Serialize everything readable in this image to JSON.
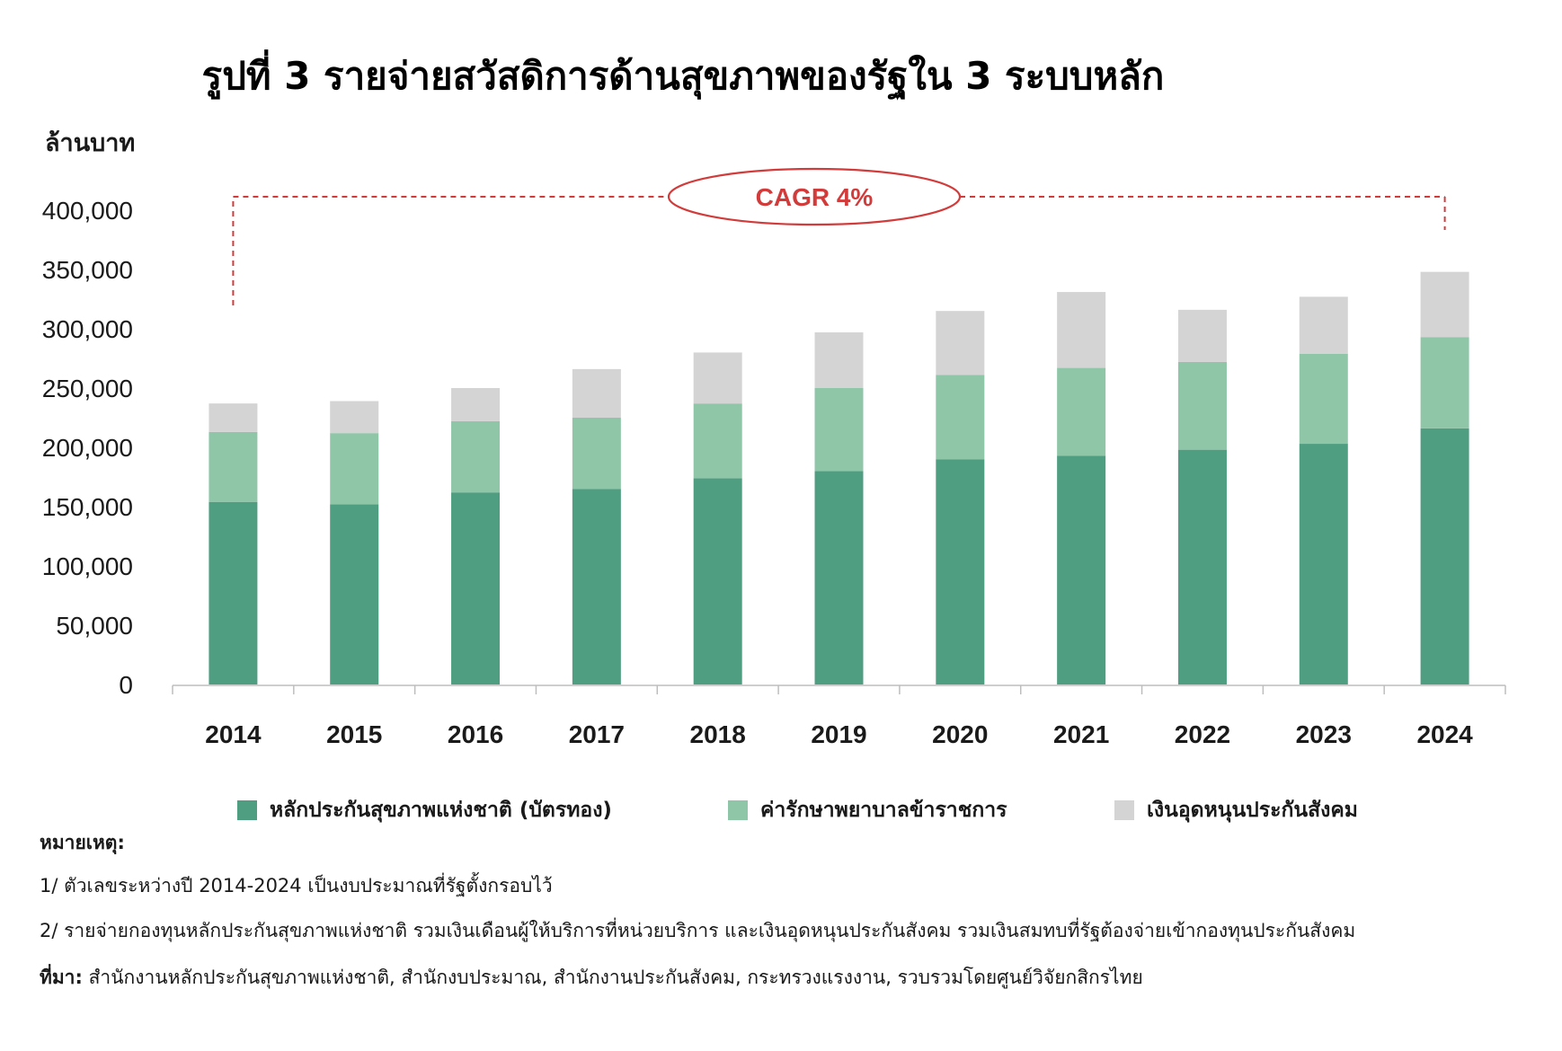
{
  "title": "รูปที่ 3 รายจ่ายสวัสดิการด้านสุขภาพของรัฐใน 3 ระบบหลัก",
  "chart_data": {
    "type": "bar",
    "stacked": true,
    "ylabel": "ล้านบาท",
    "xlabel": "",
    "ylim": [
      0,
      400000
    ],
    "yticks": [
      0,
      50000,
      100000,
      150000,
      200000,
      250000,
      300000,
      350000,
      400000
    ],
    "ytick_labels": [
      "0",
      "50,000",
      "100,000",
      "150,000",
      "200,000",
      "250,000",
      "300,000",
      "350,000",
      "400,000"
    ],
    "categories": [
      "2014",
      "2015",
      "2016",
      "2017",
      "2018",
      "2019",
      "2020",
      "2021",
      "2022",
      "2023",
      "2024"
    ],
    "series": [
      {
        "name": "หลักประกันสุขภาพแห่งชาติ (บัตรทอง)",
        "color": "#4f9e82",
        "values": [
          154000,
          152000,
          162000,
          165000,
          174000,
          180000,
          190000,
          193000,
          198000,
          203000,
          216000
        ]
      },
      {
        "name": "ค่ารักษาพยาบาลข้าราชการ",
        "color": "#8fc6a8",
        "values": [
          59000,
          60000,
          60000,
          60000,
          63000,
          70000,
          71000,
          74000,
          74000,
          76000,
          77000
        ]
      },
      {
        "name": "เงินอุดหนุนประกันสังคม",
        "color": "#d4d4d4",
        "values": [
          24000,
          27000,
          28000,
          41000,
          43000,
          47000,
          54000,
          64000,
          44000,
          48000,
          55000
        ]
      }
    ],
    "grid": false,
    "legend_position": "bottom",
    "annotation": {
      "text": "CAGR 4%",
      "color": "#d33b3b",
      "from": "2014",
      "to": "2024"
    }
  },
  "notes": {
    "heading": "หมายเหตุ:",
    "items": [
      "1/ ตัวเลขระหว่างปี 2014-2024 เป็นงบประมาณที่รัฐตั้งกรอบไว้",
      "2/ รายจ่ายกองทุนหลักประกันสุขภาพแห่งชาติ รวมเงินเดือนผู้ให้บริการที่หน่วยบริการ และเงินอุดหนุนประกันสังคม รวมเงินสมทบที่รัฐต้องจ่ายเข้ากองทุนประกันสังคม"
    ]
  },
  "source": {
    "label": "ที่มา:",
    "text": "สำนักงานหลักประกันสุขภาพแห่งชาติ, สำนักงบประมาณ, สำนักงานประกันสังคม, กระทรวงแรงงาน, รวบรวมโดยศูนย์วิจัยกสิกรไทย"
  }
}
